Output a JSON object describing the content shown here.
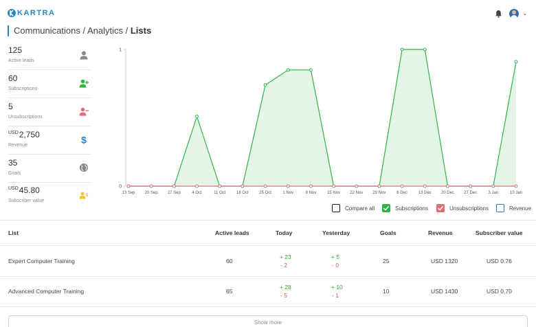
{
  "header": {
    "logo_text": "KARTRA",
    "breadcrumb": {
      "part1": "Communications",
      "sep1": " / ",
      "part2": "Analytics",
      "sep2": " / ",
      "current": "Lists"
    }
  },
  "kpis": [
    {
      "value": "125",
      "label": "Active leads",
      "icon": "user-icon",
      "color": "#888888"
    },
    {
      "value": "60",
      "label": "Subscriptions",
      "icon": "user-plus-icon",
      "color": "#2fb344"
    },
    {
      "value": "5",
      "label": "Unsubscriptions",
      "icon": "user-minus-icon",
      "color": "#e06c7a"
    },
    {
      "currency": "USD",
      "value": "2,750",
      "label": "Revenue",
      "icon": "dollar-icon",
      "color": "#1e88c8"
    },
    {
      "value": "35",
      "label": "Goals",
      "icon": "globe-icon",
      "color": "#888888"
    },
    {
      "currency": "USD",
      "value": "45.80",
      "label": "Subscriber value",
      "icon": "users-dollar-icon",
      "color": "#f0c419"
    }
  ],
  "chart_data": {
    "type": "line",
    "categories": [
      "13 Sep",
      "20 Sep",
      "27 Sep",
      "4 Oct",
      "11 Oct",
      "18 Oct",
      "25 Oct",
      "1 Nov",
      "8 Nov",
      "15 Nov",
      "22 Nov",
      "29 Nov",
      "6 Dec",
      "13 Dec",
      "20 Dec",
      "27 Dec",
      "3 Jan",
      "10 Jan"
    ],
    "yticks": [
      0,
      1
    ],
    "ylim": [
      0,
      1
    ],
    "series": [
      {
        "name": "Subscriptions",
        "color": "#2fb344",
        "fill": true,
        "values": [
          0,
          0,
          0,
          0.51,
          0,
          0,
          0.74,
          0.85,
          0.85,
          0,
          0,
          0,
          1,
          1,
          0,
          0,
          0,
          0.91
        ]
      },
      {
        "name": "Unsubscriptions",
        "color": "#e06c7a",
        "fill": false,
        "values": [
          0,
          0,
          0,
          0,
          0,
          0,
          0,
          0,
          0,
          0,
          0,
          0,
          0,
          0,
          0,
          0,
          0,
          0
        ]
      }
    ]
  },
  "legend": [
    {
      "label": "Compare all",
      "checked": false,
      "color": "#222222"
    },
    {
      "label": "Subscriptions",
      "checked": true,
      "color": "#2fb344"
    },
    {
      "label": "Unsubscriptions",
      "checked": true,
      "color": "#e06c7a"
    },
    {
      "label": "Revenue",
      "checked": false,
      "color": "#1e88c8"
    }
  ],
  "table": {
    "headers": {
      "list": "List",
      "active": "Active leads",
      "today": "Today",
      "yesterday": "Yesterday",
      "goals": "Goals",
      "revenue": "Revenue",
      "subscriber_value": "Subscriber value"
    },
    "rows": [
      {
        "list": "Expert Computer Training",
        "active": "60",
        "today_plus": "+ 23",
        "today_minus": "- 2",
        "yesterday_plus": "+ 5",
        "yesterday_minus": "- 0",
        "goals": "25",
        "revenue": "USD 1320",
        "subscriber_value": "USD 0.76"
      },
      {
        "list": "Advanced Computer Training",
        "active": "65",
        "today_plus": "+ 28",
        "today_minus": "- 5",
        "yesterday_plus": "+ 10",
        "yesterday_minus": "- 1",
        "goals": "10",
        "revenue": "USD 1430",
        "subscriber_value": "USD 0.70"
      }
    ]
  },
  "show_more_label": "Show more"
}
